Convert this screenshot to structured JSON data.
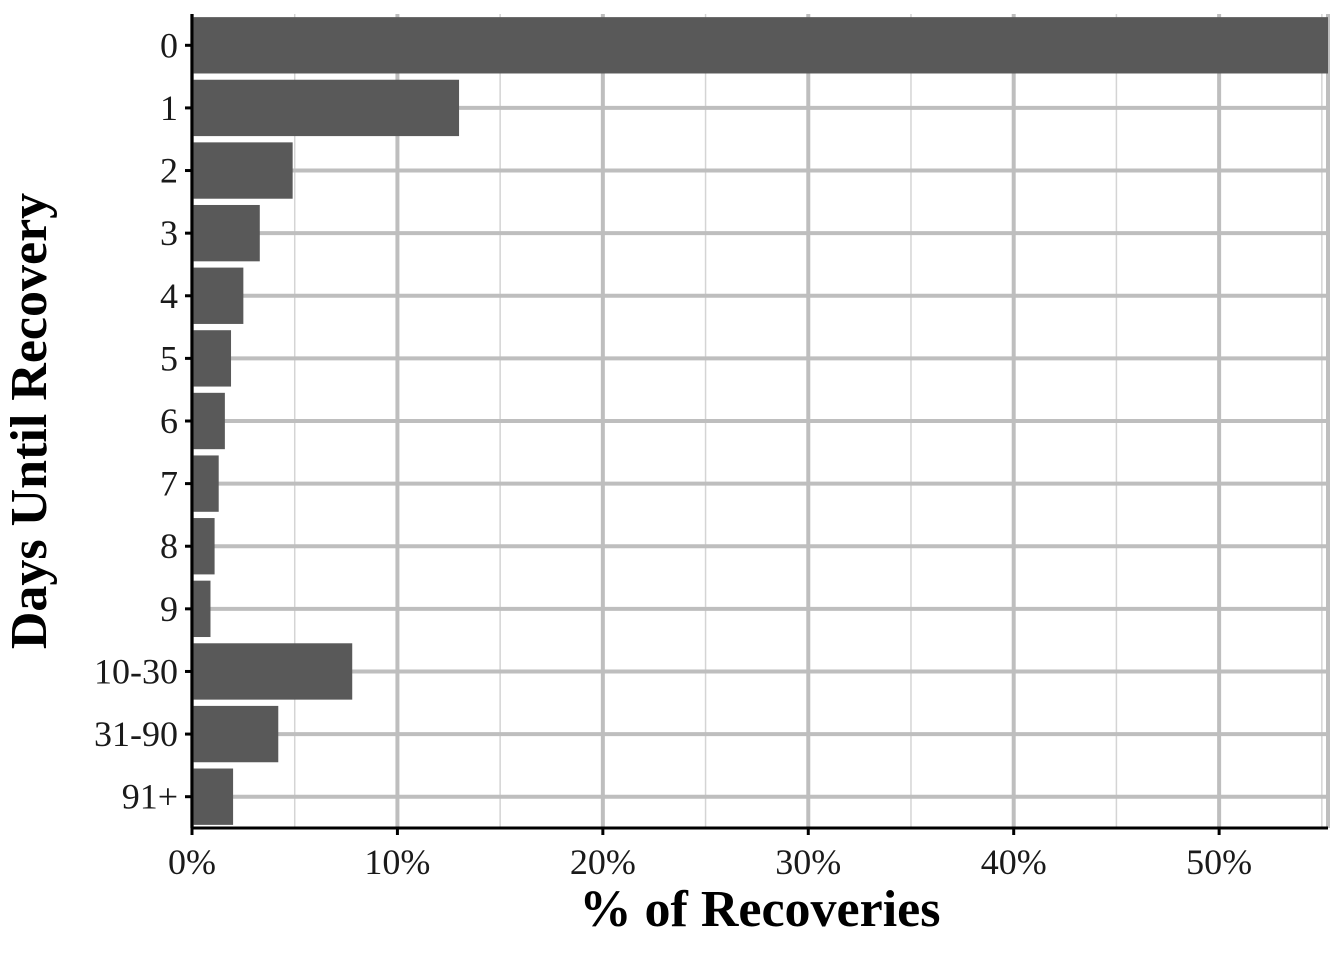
{
  "chart_data": {
    "type": "bar",
    "orientation": "horizontal",
    "categories": [
      "0",
      "1",
      "2",
      "3",
      "4",
      "5",
      "6",
      "7",
      "8",
      "9",
      "10-30",
      "31-90",
      "91+"
    ],
    "values": [
      55.3,
      13.0,
      4.9,
      3.3,
      2.5,
      1.9,
      1.6,
      1.3,
      1.1,
      0.9,
      7.8,
      4.2,
      2.0
    ],
    "value_unit": "%",
    "xlabel": "% of Recoveries",
    "ylabel": "Days Until Recovery",
    "xlim": [
      0,
      55.3
    ],
    "xticks": [
      0,
      10,
      20,
      30,
      40,
      50
    ],
    "xtick_labels": [
      "0%",
      "10%",
      "20%",
      "30%",
      "40%",
      "50%"
    ],
    "grid": true,
    "legend": "none",
    "colors": {
      "bar": "#595959",
      "grid_major": "#bebebe",
      "grid_minor": "#d4d4d4",
      "axis": "#000000",
      "background": "#ffffff"
    }
  }
}
